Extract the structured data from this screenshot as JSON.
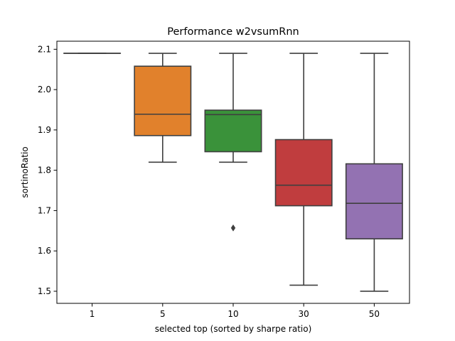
{
  "chart_data": {
    "type": "box",
    "title": "Performance w2vsumRnn",
    "xlabel": "selected top (sorted by sharpe ratio)",
    "ylabel": "sortinoRatio",
    "ylim": [
      1.47,
      2.12
    ],
    "yticks": [
      1.5,
      1.6,
      1.7,
      1.8,
      1.9,
      2.0,
      2.1
    ],
    "ytick_labels": [
      "1.5",
      "1.6",
      "1.7",
      "1.8",
      "1.9",
      "2.0",
      "2.1"
    ],
    "categories": [
      "1",
      "5",
      "10",
      "30",
      "50"
    ],
    "boxes": [
      {
        "category": "1",
        "whisker_low": 2.09,
        "q1": 2.09,
        "median": 2.09,
        "q3": 2.09,
        "whisker_high": 2.09,
        "outliers": [],
        "color": "#3274a1"
      },
      {
        "category": "5",
        "whisker_low": 1.82,
        "q1": 1.886,
        "median": 1.939,
        "q3": 2.058,
        "whisker_high": 2.09,
        "outliers": [],
        "color": "#e1812c"
      },
      {
        "category": "10",
        "whisker_low": 1.82,
        "q1": 1.846,
        "median": 1.938,
        "q3": 1.949,
        "whisker_high": 2.09,
        "outliers": [
          1.657
        ],
        "color": "#3a923a"
      },
      {
        "category": "30",
        "whisker_low": 1.515,
        "q1": 1.712,
        "median": 1.763,
        "q3": 1.876,
        "whisker_high": 2.09,
        "outliers": [],
        "color": "#c03d3e"
      },
      {
        "category": "50",
        "whisker_low": 1.5,
        "q1": 1.63,
        "median": 1.718,
        "q3": 1.816,
        "whisker_high": 2.09,
        "outliers": [],
        "color": "#9372b2"
      }
    ],
    "grid": false,
    "legend": "none"
  }
}
